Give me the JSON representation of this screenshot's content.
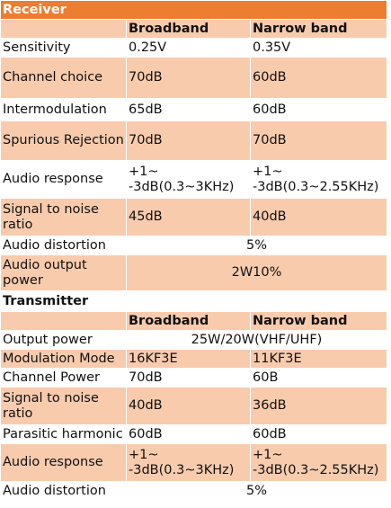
{
  "receiver": {
    "title": "Receiver",
    "headers": [
      "Broadband",
      "Narrow band"
    ],
    "rows": [
      {
        "label": "Sensitivity",
        "broadband": "0.25V",
        "narrowband": "0.35V"
      },
      {
        "label": "Channel choice",
        "broadband": "70dB",
        "narrowband": "60dB"
      },
      {
        "label": "Intermodulation",
        "broadband": "65dB",
        "narrowband": "60dB"
      },
      {
        "label": "Spurious Rejection",
        "broadband": "70dB",
        "narrowband": "70dB"
      },
      {
        "label": "Audio response",
        "broadband": "+1~ -3dB(0.3~3KHz)",
        "narrowband": "+1~ -3dB(0.3~2.55KHz)"
      },
      {
        "label": "Signal to noise ratio",
        "broadband": "45dB",
        "narrowband": "40dB"
      },
      {
        "label": "Audio distortion",
        "combined": "5%"
      },
      {
        "label": "Audio output power",
        "combined": "2W10%"
      }
    ]
  },
  "transmitter": {
    "title": "Transmitter",
    "headers": [
      "Broadband",
      "Narrow band"
    ],
    "rows": [
      {
        "label": "Output power",
        "combined": "25W/20W(VHF/UHF)"
      },
      {
        "label": "Modulation Mode",
        "broadband": "16KF3E",
        "narrowband": "11KF3E"
      },
      {
        "label": "Channel Power",
        "broadband": "70dB",
        "narrowband": "60B"
      },
      {
        "label": "Signal to noise ratio",
        "broadband": "40dB",
        "narrowband": "36dB"
      },
      {
        "label": "Parasitic harmonic",
        "broadband": "60dB",
        "narrowband": "60dB"
      },
      {
        "label": "Audio response",
        "broadband": "+1~ -3dB(0.3~3KHz)",
        "narrowband": "+1~ -3dB(0.3~2.55KHz)"
      },
      {
        "label": "Audio distortion",
        "combined": "5%"
      }
    ]
  },
  "colors": {
    "accent": "#ed7d31",
    "band": "#f8cbad"
  }
}
